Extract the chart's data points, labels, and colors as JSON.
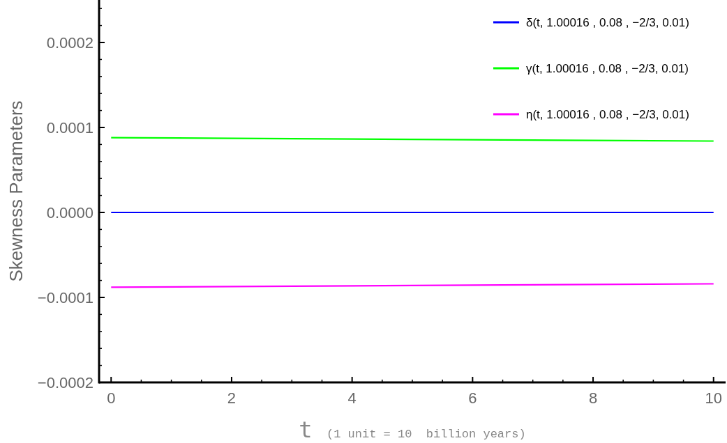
{
  "chart_data": {
    "type": "line",
    "xlabel": "t  (1 unit = 10  billion years)",
    "ylabel": "Skewness Parameters",
    "x": [
      0,
      2.5,
      5,
      7.5,
      10
    ],
    "series": [
      {
        "name": "δ(t, 1.00016 , 0.08 , −2/3, 0.01)",
        "color": "#0000ff",
        "values": [
          0,
          0,
          0,
          0,
          0
        ]
      },
      {
        "name": "γ(t, 1.00016 , 0.08 , −2/3, 0.01)",
        "color": "#00ff00",
        "values": [
          8.8e-05,
          8.7e-05,
          8.6e-05,
          8.5e-05,
          8.4e-05
        ]
      },
      {
        "name": "η(t, 1.00016 , 0.08 , −2/3, 0.01)",
        "color": "#ff00ff",
        "values": [
          -8.8e-05,
          -8.7e-05,
          -8.6e-05,
          -8.5e-05,
          -8.4e-05
        ]
      }
    ],
    "xlim": [
      -0.2,
      10.2
    ],
    "ylim": [
      -0.0002,
      0.00025
    ],
    "xticks": [
      0,
      {
        "value": 0.5,
        "label": null
      },
      {
        "value": 1,
        "label": null
      },
      {
        "value": 1.5,
        "label": null
      },
      2,
      {
        "value": 2.5,
        "label": null
      },
      {
        "value": 3,
        "label": null
      },
      {
        "value": 3.5,
        "label": null
      },
      4,
      {
        "value": 4.5,
        "label": null
      },
      {
        "value": 5,
        "label": null
      },
      {
        "value": 5.5,
        "label": null
      },
      6,
      {
        "value": 6.5,
        "label": null
      },
      {
        "value": 7,
        "label": null
      },
      {
        "value": 7.5,
        "label": null
      },
      8,
      {
        "value": 8.5,
        "label": null
      },
      {
        "value": 9,
        "label": null
      },
      {
        "value": 9.5,
        "label": null
      },
      10
    ],
    "yticks": [
      {
        "value": -0.0002,
        "label": "−0.0002"
      },
      {
        "value": -0.00018,
        "label": null
      },
      {
        "value": -0.00016,
        "label": null
      },
      {
        "value": -0.00014,
        "label": null
      },
      {
        "value": -0.00012,
        "label": null
      },
      {
        "value": -0.0001,
        "label": "−0.0001"
      },
      {
        "value": -8e-05,
        "label": null
      },
      {
        "value": -6e-05,
        "label": null
      },
      {
        "value": -4e-05,
        "label": null
      },
      {
        "value": -2e-05,
        "label": null
      },
      {
        "value": 0,
        "label": "0.0000"
      },
      {
        "value": 2e-05,
        "label": null
      },
      {
        "value": 4e-05,
        "label": null
      },
      {
        "value": 6e-05,
        "label": null
      },
      {
        "value": 8e-05,
        "label": null
      },
      {
        "value": 0.0001,
        "label": "0.0001"
      },
      {
        "value": 0.00012,
        "label": null
      },
      {
        "value": 0.00014,
        "label": null
      },
      {
        "value": 0.00016,
        "label": null
      },
      {
        "value": 0.00018,
        "label": null
      },
      {
        "value": 0.0002,
        "label": "0.0002"
      },
      {
        "value": 0.00022,
        "label": null
      },
      {
        "value": 0.00024,
        "label": null
      }
    ],
    "grid": false,
    "legend": "top right",
    "marker": "none",
    "line_style": "solid"
  }
}
